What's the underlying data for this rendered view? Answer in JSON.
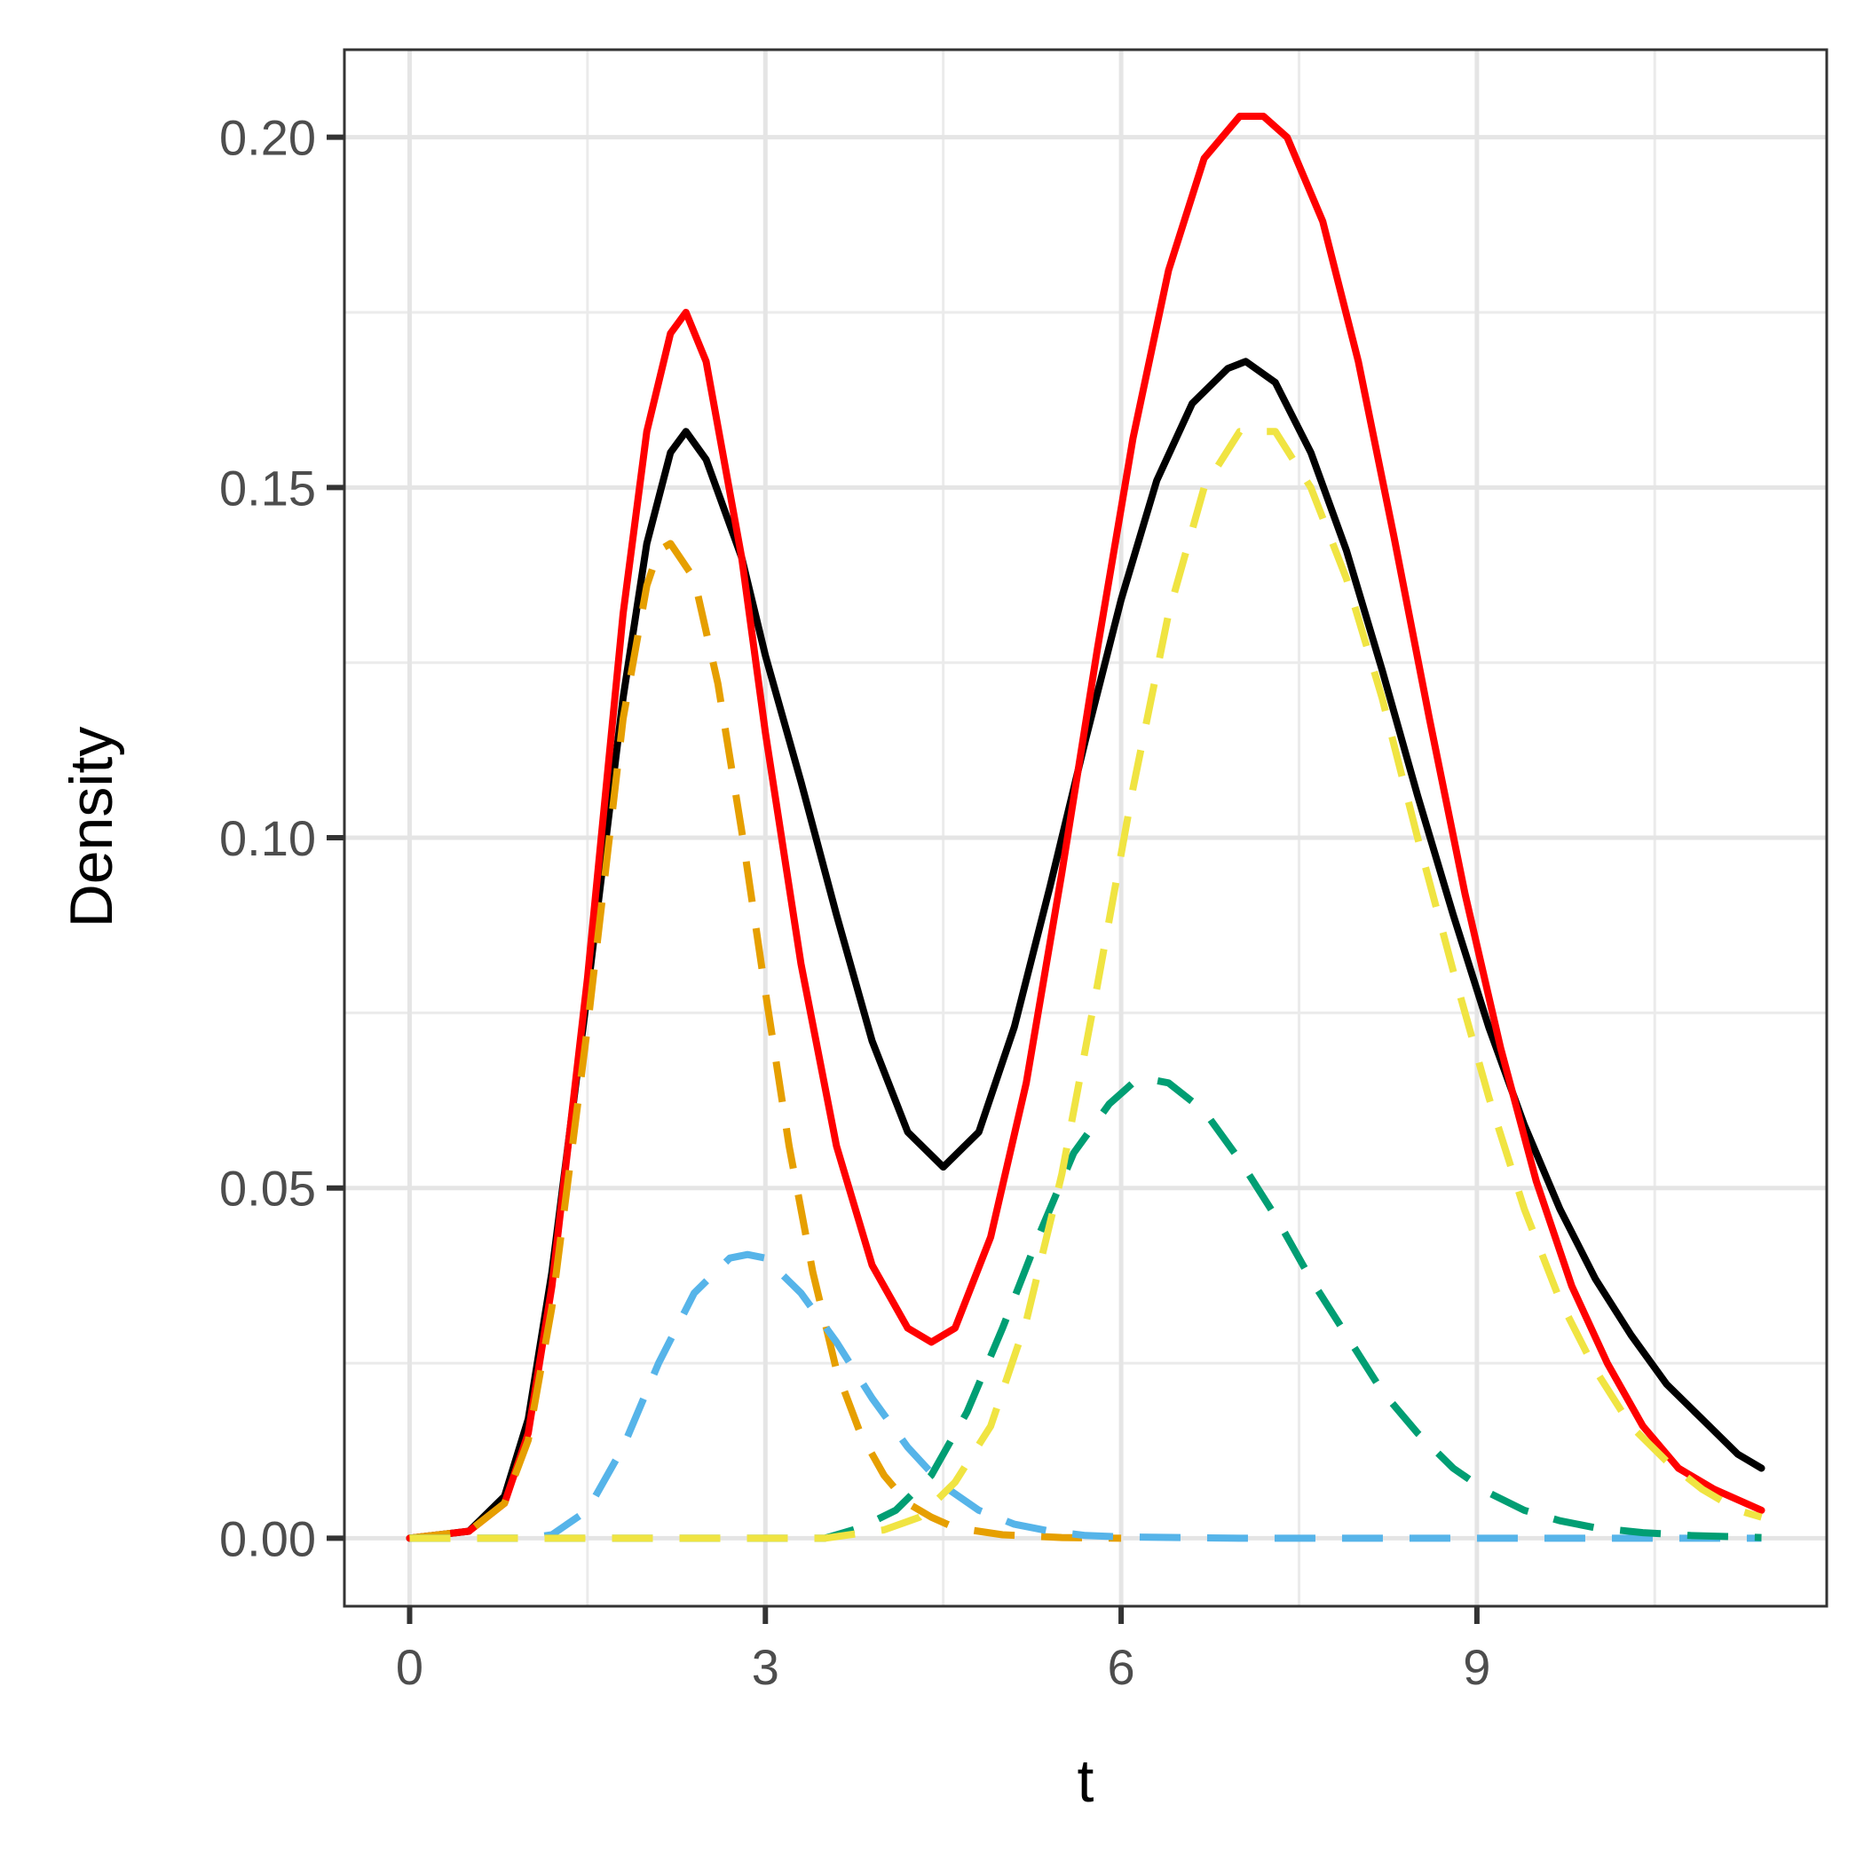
{
  "chart_data": {
    "type": "line",
    "title": "",
    "xlabel": "t",
    "ylabel": "Density",
    "xlim": [
      -0.55,
      11.95
    ],
    "ylim": [
      -0.0097,
      0.2125
    ],
    "xticks": [
      0,
      3,
      6,
      9
    ],
    "xtick_labels": [
      "0",
      "3",
      "6",
      "9"
    ],
    "yticks": [
      0.0,
      0.05,
      0.1,
      0.15,
      0.2
    ],
    "ytick_labels": [
      "0.00",
      "0.05",
      "0.10",
      "0.15",
      "0.20"
    ],
    "grid": true,
    "legend": "none",
    "series": [
      {
        "color": "#000000",
        "style": "solid",
        "x": [
          0,
          0.5,
          0.8,
          1.0,
          1.2,
          1.5,
          1.8,
          2.0,
          2.2,
          2.33,
          2.5,
          2.8,
          3.0,
          3.3,
          3.6,
          3.9,
          4.2,
          4.5,
          4.8,
          5.1,
          5.4,
          5.7,
          6.0,
          6.3,
          6.6,
          6.9,
          7.05,
          7.3,
          7.6,
          7.9,
          8.2,
          8.5,
          8.8,
          9.1,
          9.4,
          9.7,
          10.0,
          10.3,
          10.6,
          10.9,
          11.2,
          11.4
        ],
        "y": [
          0.0,
          0.001,
          0.006,
          0.017,
          0.038,
          0.078,
          0.12,
          0.142,
          0.155,
          0.158,
          0.154,
          0.14,
          0.126,
          0.108,
          0.089,
          0.071,
          0.058,
          0.053,
          0.058,
          0.073,
          0.093,
          0.114,
          0.134,
          0.151,
          0.162,
          0.167,
          0.168,
          0.165,
          0.155,
          0.141,
          0.124,
          0.106,
          0.089,
          0.073,
          0.059,
          0.047,
          0.037,
          0.029,
          0.022,
          0.017,
          0.012,
          0.01
        ]
      },
      {
        "color": "#ff0000",
        "style": "solid",
        "x": [
          0,
          0.5,
          0.8,
          1.0,
          1.2,
          1.5,
          1.8,
          2.0,
          2.2,
          2.33,
          2.5,
          2.8,
          3.0,
          3.3,
          3.6,
          3.9,
          4.2,
          4.4,
          4.6,
          4.9,
          5.2,
          5.5,
          5.8,
          6.1,
          6.4,
          6.7,
          7.0,
          7.2,
          7.4,
          7.7,
          8.0,
          8.3,
          8.6,
          8.9,
          9.2,
          9.5,
          9.8,
          10.1,
          10.4,
          10.7,
          11.0,
          11.4
        ],
        "y": [
          0.0,
          0.001,
          0.005,
          0.015,
          0.036,
          0.08,
          0.132,
          0.158,
          0.172,
          0.175,
          0.168,
          0.14,
          0.115,
          0.082,
          0.056,
          0.039,
          0.03,
          0.028,
          0.03,
          0.043,
          0.065,
          0.095,
          0.127,
          0.157,
          0.181,
          0.197,
          0.203,
          0.203,
          0.2,
          0.188,
          0.168,
          0.143,
          0.117,
          0.092,
          0.07,
          0.051,
          0.036,
          0.025,
          0.016,
          0.01,
          0.007,
          0.004
        ]
      },
      {
        "color": "#e69f00",
        "style": "dashed",
        "x": [
          0,
          0.5,
          0.8,
          1.0,
          1.2,
          1.5,
          1.8,
          2.0,
          2.1,
          2.2,
          2.4,
          2.6,
          2.8,
          3.0,
          3.2,
          3.4,
          3.6,
          3.8,
          4.0,
          4.2,
          4.4,
          4.6,
          5.0,
          5.5,
          6.0
        ],
        "y": [
          0.0,
          0.001,
          0.005,
          0.014,
          0.033,
          0.073,
          0.117,
          0.136,
          0.141,
          0.142,
          0.137,
          0.122,
          0.101,
          0.078,
          0.056,
          0.038,
          0.024,
          0.015,
          0.009,
          0.005,
          0.003,
          0.0015,
          0.0005,
          0.0001,
          0.0
        ]
      },
      {
        "color": "#56b4e9",
        "style": "dashed",
        "x": [
          0,
          1.0,
          1.2,
          1.5,
          1.8,
          2.1,
          2.4,
          2.7,
          2.85,
          3.0,
          3.3,
          3.6,
          3.9,
          4.2,
          4.5,
          4.8,
          5.1,
          5.4,
          5.7,
          6.0,
          7.0,
          8.0,
          9.0,
          10.0,
          11.0,
          11.4
        ],
        "y": [
          0.0,
          0.0,
          0.0005,
          0.004,
          0.013,
          0.025,
          0.035,
          0.04,
          0.0405,
          0.04,
          0.035,
          0.028,
          0.02,
          0.013,
          0.0075,
          0.004,
          0.002,
          0.001,
          0.0004,
          0.0002,
          0.0,
          0.0,
          0.0,
          0.0,
          0.0,
          0.0
        ]
      },
      {
        "color": "#009e73",
        "style": "dashed",
        "x": [
          0,
          2.5,
          3.5,
          3.8,
          4.1,
          4.4,
          4.7,
          5.0,
          5.3,
          5.6,
          5.9,
          6.1,
          6.25,
          6.4,
          6.7,
          7.0,
          7.3,
          7.6,
          7.9,
          8.2,
          8.5,
          8.8,
          9.1,
          9.4,
          9.7,
          10.0,
          10.4,
          10.8,
          11.4
        ],
        "y": [
          0.0,
          0.0,
          0.0,
          0.0015,
          0.004,
          0.009,
          0.018,
          0.03,
          0.043,
          0.055,
          0.062,
          0.065,
          0.0655,
          0.065,
          0.061,
          0.054,
          0.046,
          0.037,
          0.029,
          0.021,
          0.015,
          0.01,
          0.0065,
          0.004,
          0.0025,
          0.0015,
          0.0008,
          0.0004,
          0.0001
        ]
      },
      {
        "color": "#f0e442",
        "style": "dashed",
        "x": [
          0,
          3.5,
          4.0,
          4.3,
          4.6,
          4.9,
          5.2,
          5.5,
          5.8,
          6.1,
          6.4,
          6.7,
          7.0,
          7.3,
          7.6,
          7.9,
          8.2,
          8.5,
          8.8,
          9.1,
          9.4,
          9.7,
          10.0,
          10.3,
          10.6,
          10.9,
          11.2,
          11.4
        ],
        "y": [
          0.0,
          0.0,
          0.0012,
          0.003,
          0.008,
          0.016,
          0.031,
          0.052,
          0.079,
          0.107,
          0.132,
          0.15,
          0.158,
          0.158,
          0.15,
          0.137,
          0.12,
          0.1,
          0.081,
          0.063,
          0.047,
          0.034,
          0.024,
          0.016,
          0.011,
          0.007,
          0.004,
          0.003
        ]
      }
    ]
  }
}
